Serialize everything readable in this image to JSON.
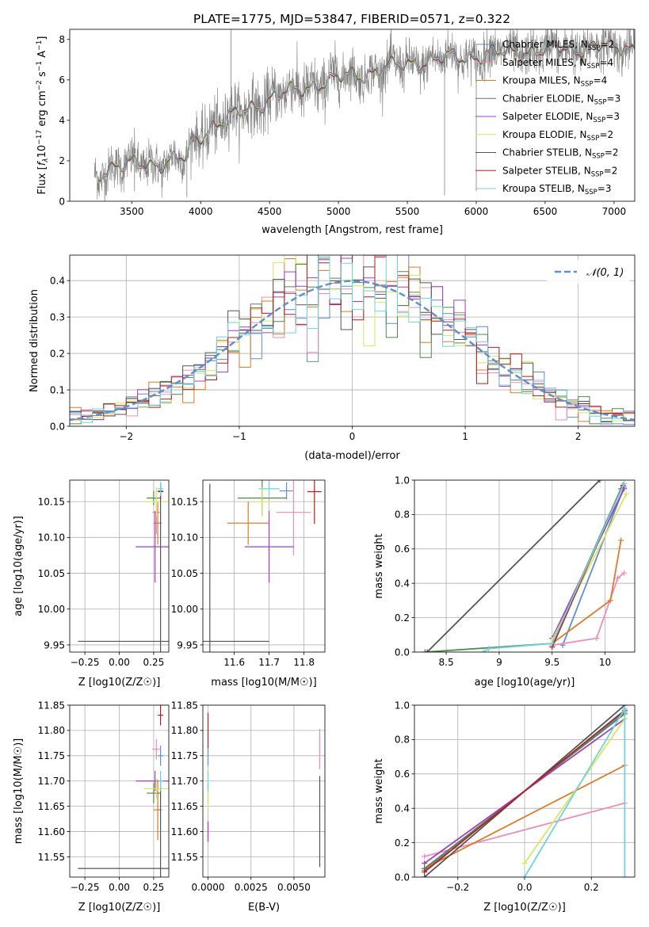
{
  "figure": {
    "title": "PLATE=1775, MJD=53847, FIBERID=0571, z=0.322"
  },
  "colors": {
    "chabrier_miles": "#5b8fd6",
    "salpeter_miles": "#f08db8",
    "kroupa_miles": "#e07b27",
    "chabrier_elodie": "#4c8a4c",
    "salpeter_elodie": "#a33fc4",
    "kroupa_elodie": "#d9e85a",
    "chabrier_stelib": "#555555",
    "salpeter_stelib": "#b51f1f",
    "kroupa_stelib": "#6fd3df",
    "observed": "#808080",
    "normal": "#5b8fd6"
  },
  "chart_data": [
    {
      "id": "spectrum",
      "type": "line",
      "xlabel": "wavelength [Angstrom, rest frame]",
      "ylabel": "Flux [f_λ 10^-17 erg cm^-2 s^-1 A^-1]",
      "xlim": [
        3050,
        7150
      ],
      "ylim": [
        0,
        8.5
      ],
      "xticks": [
        3500,
        4000,
        4500,
        5000,
        5500,
        6000,
        6500,
        7000
      ],
      "yticks": [
        0,
        2,
        4,
        6,
        8
      ],
      "grid": false,
      "legend_position": "top-right",
      "continuum_points": [
        [
          3230,
          1.2
        ],
        [
          3300,
          1.6
        ],
        [
          3500,
          1.8
        ],
        [
          3700,
          1.9
        ],
        [
          3900,
          2.1
        ],
        [
          3950,
          3.0
        ],
        [
          4100,
          3.8
        ],
        [
          4300,
          4.4
        ],
        [
          4500,
          5.1
        ],
        [
          4700,
          5.5
        ],
        [
          4900,
          5.9
        ],
        [
          5100,
          6.2
        ],
        [
          5300,
          6.5
        ],
        [
          5500,
          6.8
        ],
        [
          5700,
          7.0
        ],
        [
          6000,
          7.2
        ],
        [
          6300,
          7.4
        ],
        [
          6600,
          7.5
        ],
        [
          6800,
          7.6
        ],
        [
          7000,
          7.6
        ],
        [
          7150,
          7.6
        ]
      ],
      "legend": [
        {
          "name": "Chabrier MILES, N_SSP=2",
          "label": "Chabrier MILES, N",
          "sub": "SSP",
          "suffix": "=2",
          "color_key": "chabrier_miles"
        },
        {
          "name": "Salpeter MILES, N_SSP=4",
          "label": "Salpeter MILES, N",
          "sub": "SSP",
          "suffix": "=4",
          "color_key": "salpeter_miles"
        },
        {
          "name": "Kroupa MILES, N_SSP=4",
          "label": "Kroupa MILES, N",
          "sub": "SSP",
          "suffix": "=4",
          "color_key": "kroupa_miles"
        },
        {
          "name": "Chabrier ELODIE, N_SSP=3",
          "label": "Chabrier ELODIE, N",
          "sub": "SSP",
          "suffix": "=3",
          "color_key": "chabrier_elodie"
        },
        {
          "name": "Salpeter ELODIE, N_SSP=3",
          "label": "Salpeter ELODIE, N",
          "sub": "SSP",
          "suffix": "=3",
          "color_key": "salpeter_elodie"
        },
        {
          "name": "Kroupa ELODIE, N_SSP=2",
          "label": "Kroupa ELODIE, N",
          "sub": "SSP",
          "suffix": "=2",
          "color_key": "kroupa_elodie"
        },
        {
          "name": "Chabrier STELIB, N_SSP=2",
          "label": "Chabrier STELIB, N",
          "sub": "SSP",
          "suffix": "=2",
          "color_key": "chabrier_stelib"
        },
        {
          "name": "Salpeter STELIB, N_SSP=2",
          "label": "Salpeter STELIB, N",
          "sub": "SSP",
          "suffix": "=2",
          "color_key": "salpeter_stelib"
        },
        {
          "name": "Kroupa STELIB, N_SSP=3",
          "label": "Kroupa STELIB, N",
          "sub": "SSP",
          "suffix": "=3",
          "color_key": "kroupa_stelib"
        }
      ]
    },
    {
      "id": "residuals",
      "type": "line",
      "xlabel": "(data-model)/error",
      "ylabel": "Normed distribution",
      "xlim": [
        -2.5,
        2.5
      ],
      "ylim": [
        0,
        0.47
      ],
      "xticks": [
        -2,
        -1,
        0,
        1,
        2
      ],
      "yticks": [
        0.0,
        0.1,
        0.2,
        0.3,
        0.4
      ],
      "grid": true,
      "legend_position": "top-right",
      "legend": [
        {
          "name": "N(0,1)",
          "label": "𝒩(0, 1)",
          "color_key": "normal",
          "style": "dashed"
        }
      ],
      "bin_width": 0.1
    },
    {
      "id": "age_vs_Z",
      "type": "scatter",
      "xlabel": "Z [log10(Z/Z☉)]",
      "ylabel": "age [log10(age/yr)]",
      "xlim": [
        -0.36,
        0.36
      ],
      "ylim": [
        9.94,
        10.18
      ],
      "xticks": [
        -0.25,
        0.0,
        0.25
      ],
      "xtick_labels": [
        "−0.25",
        "0.00",
        "0.25"
      ],
      "yticks": [
        9.95,
        10.0,
        10.05,
        10.1,
        10.15
      ],
      "grid": true,
      "points": [
        {
          "color_key": "chabrier_miles",
          "x": 0.3,
          "y": 10.165,
          "xerr": 0.02,
          "yerr": 0.012
        },
        {
          "color_key": "salpeter_miles",
          "x": 0.27,
          "y": 10.135,
          "xerr": 0.03,
          "yerr": 0.03
        },
        {
          "color_key": "kroupa_miles",
          "x": 0.28,
          "y": 10.12,
          "xerr": 0.03,
          "yerr": 0.03
        },
        {
          "color_key": "chabrier_elodie",
          "x": 0.25,
          "y": 10.155,
          "xerr": 0.05,
          "yerr": 0.01
        },
        {
          "color_key": "salpeter_elodie",
          "x": 0.26,
          "y": 10.087,
          "xerr": 0.14,
          "yerr": 0.05
        },
        {
          "color_key": "kroupa_elodie",
          "x": 0.27,
          "y": 10.15,
          "xerr": 0.09,
          "yerr": 0.02
        },
        {
          "color_key": "chabrier_stelib",
          "x": 0.3,
          "y": 9.955,
          "xerr": 0.6,
          "yerr": 0.22
        },
        {
          "color_key": "salpeter_stelib",
          "x": 0.3,
          "y": 10.164,
          "xerr": 0.02,
          "yerr": 0.01
        },
        {
          "color_key": "kroupa_stelib",
          "x": 0.3,
          "y": 10.168,
          "xerr": 0.02,
          "yerr": 0.01
        }
      ]
    },
    {
      "id": "age_vs_mass",
      "type": "scatter",
      "xlabel": "mass [log10(M/M☉)]",
      "ylabel": "",
      "xlim": [
        11.51,
        11.86
      ],
      "ylim": [
        9.94,
        10.18
      ],
      "xticks": [
        11.6,
        11.7,
        11.8
      ],
      "yticks": [
        9.95,
        10.0,
        10.05,
        10.1,
        10.15
      ],
      "grid": true,
      "points": [
        {
          "color_key": "chabrier_miles",
          "x": 11.75,
          "y": 10.165,
          "xerr": 0.02,
          "yerr": 0.012
        },
        {
          "color_key": "salpeter_miles",
          "x": 11.77,
          "y": 10.135,
          "xerr": 0.05,
          "yerr": 0.06
        },
        {
          "color_key": "kroupa_miles",
          "x": 11.64,
          "y": 10.12,
          "xerr": 0.06,
          "yerr": 0.03
        },
        {
          "color_key": "chabrier_elodie",
          "x": 11.68,
          "y": 10.155,
          "xerr": 0.07,
          "yerr": 0.025
        },
        {
          "color_key": "salpeter_elodie",
          "x": 11.7,
          "y": 10.087,
          "xerr": 0.07,
          "yerr": 0.05
        },
        {
          "color_key": "kroupa_elodie",
          "x": 11.68,
          "y": 10.15,
          "xerr": 0.03,
          "yerr": 0.02
        },
        {
          "color_key": "chabrier_stelib",
          "x": 11.53,
          "y": 9.955,
          "xerr": 0.17,
          "yerr": 0.22
        },
        {
          "color_key": "salpeter_stelib",
          "x": 11.83,
          "y": 10.164,
          "xerr": 0.02,
          "yerr": 0.045
        },
        {
          "color_key": "kroupa_stelib",
          "x": 11.7,
          "y": 10.168,
          "xerr": 0.03,
          "yerr": 0.01
        }
      ]
    },
    {
      "id": "mass_weight_vs_age",
      "type": "line",
      "xlabel": "age [log10(age/yr)]",
      "ylabel": "mass weight",
      "xlim": [
        8.2,
        10.28
      ],
      "ylim": [
        0,
        1.0
      ],
      "xticks": [
        8.5,
        9.0,
        9.5,
        10.0
      ],
      "yticks": [
        0.0,
        0.2,
        0.4,
        0.6,
        0.8,
        1.0
      ],
      "grid": true,
      "series": [
        {
          "color_key": "chabrier_miles",
          "points": [
            [
              9.6,
              0.04
            ],
            [
              10.18,
              0.96
            ]
          ]
        },
        {
          "color_key": "salpeter_miles",
          "points": [
            [
              9.5,
              0.04
            ],
            [
              9.92,
              0.08
            ],
            [
              10.12,
              0.43
            ],
            [
              10.18,
              0.46
            ]
          ]
        },
        {
          "color_key": "kroupa_miles",
          "points": [
            [
              9.5,
              0.05
            ],
            [
              10.05,
              0.3
            ],
            [
              10.15,
              0.65
            ]
          ]
        },
        {
          "color_key": "chabrier_elodie",
          "points": [
            [
              8.3,
              0.0
            ],
            [
              9.5,
              0.05
            ],
            [
              10.15,
              0.95
            ]
          ]
        },
        {
          "color_key": "salpeter_elodie",
          "points": [
            [
              9.5,
              0.08
            ],
            [
              10.18,
              0.95
            ]
          ]
        },
        {
          "color_key": "kroupa_elodie",
          "points": [
            [
              9.5,
              0.07
            ],
            [
              10.2,
              0.92
            ]
          ]
        },
        {
          "color_key": "chabrier_stelib",
          "points": [
            [
              8.32,
              0.0
            ],
            [
              9.95,
              1.0
            ]
          ]
        },
        {
          "color_key": "salpeter_stelib",
          "points": [
            [
              9.5,
              0.03
            ],
            [
              10.17,
              0.97
            ]
          ]
        },
        {
          "color_key": "kroupa_stelib",
          "points": [
            [
              8.85,
              0.0
            ],
            [
              8.9,
              0.02
            ],
            [
              9.5,
              0.05
            ],
            [
              10.18,
              0.98
            ]
          ]
        }
      ]
    },
    {
      "id": "mass_vs_Z",
      "type": "scatter",
      "xlabel": "Z [log10(Z/Z☉)]",
      "ylabel": "mass [log10(M/M☉)]",
      "xlim": [
        -0.36,
        0.36
      ],
      "ylim": [
        11.51,
        11.85
      ],
      "xticks": [
        -0.25,
        0.0,
        0.25
      ],
      "xtick_labels": [
        "−0.25",
        "0.00",
        "0.25"
      ],
      "yticks": [
        11.55,
        11.6,
        11.65,
        11.7,
        11.75,
        11.8,
        11.85
      ],
      "grid": true,
      "points": [
        {
          "color_key": "chabrier_miles",
          "x": 0.3,
          "y": 11.75,
          "xerr": 0.02,
          "yerr": 0.02
        },
        {
          "color_key": "salpeter_miles",
          "x": 0.27,
          "y": 11.763,
          "xerr": 0.03,
          "yerr": 0.02
        },
        {
          "color_key": "kroupa_miles",
          "x": 0.28,
          "y": 11.643,
          "xerr": 0.03,
          "yerr": 0.06
        },
        {
          "color_key": "chabrier_elodie",
          "x": 0.25,
          "y": 11.676,
          "xerr": 0.05,
          "yerr": 0.02
        },
        {
          "color_key": "salpeter_elodie",
          "x": 0.26,
          "y": 11.7,
          "xerr": 0.14,
          "yerr": 0.02
        },
        {
          "color_key": "kroupa_elodie",
          "x": 0.27,
          "y": 11.685,
          "xerr": 0.09,
          "yerr": 0.02
        },
        {
          "color_key": "chabrier_stelib",
          "x": 0.3,
          "y": 11.527,
          "xerr": 0.6,
          "yerr": 0.18
        },
        {
          "color_key": "salpeter_stelib",
          "x": 0.3,
          "y": 11.83,
          "xerr": 0.02,
          "yerr": 0.02
        },
        {
          "color_key": "kroupa_stelib",
          "x": 0.3,
          "y": 11.7,
          "xerr": 0.02,
          "yerr": 0.02
        }
      ]
    },
    {
      "id": "mass_vs_ebv",
      "type": "scatter",
      "xlabel": "E(B-V)",
      "ylabel": "",
      "xlim": [
        -0.0003,
        0.0068
      ],
      "ylim": [
        11.51,
        11.85
      ],
      "xticks": [
        0.0,
        0.0025,
        0.005
      ],
      "xtick_labels": [
        "0.0000",
        "0.0025",
        "0.0050"
      ],
      "yticks": [
        11.55,
        11.6,
        11.65,
        11.7,
        11.75,
        11.8,
        11.85
      ],
      "grid": true,
      "points": [
        {
          "color_key": "chabrier_miles",
          "x": 0.0,
          "y": 11.75,
          "xerr": 2e-05,
          "yerr": 0.02
        },
        {
          "color_key": "salpeter_miles",
          "x": 0.0065,
          "y": 11.763,
          "xerr": 2e-05,
          "yerr": 0.04
        },
        {
          "color_key": "kroupa_miles",
          "x": 0.0,
          "y": 11.6,
          "xerr": 2e-05,
          "yerr": 0.02
        },
        {
          "color_key": "chabrier_elodie",
          "x": 0.0,
          "y": 11.676,
          "xerr": 2e-05,
          "yerr": 0.02
        },
        {
          "color_key": "salpeter_elodie",
          "x": 0.0,
          "y": 11.6,
          "xerr": 2e-05,
          "yerr": 0.02
        },
        {
          "color_key": "kroupa_elodie",
          "x": 0.0,
          "y": 11.685,
          "xerr": 2e-05,
          "yerr": 0.04
        },
        {
          "color_key": "chabrier_stelib",
          "x": 0.0065,
          "y": 11.62,
          "xerr": 2e-05,
          "yerr": 0.09
        },
        {
          "color_key": "salpeter_stelib",
          "x": 0.0,
          "y": 11.8,
          "xerr": 2e-05,
          "yerr": 0.035
        },
        {
          "color_key": "kroupa_stelib",
          "x": 0.0,
          "y": 11.7,
          "xerr": 2e-05,
          "yerr": 0.02
        }
      ]
    },
    {
      "id": "mass_weight_vs_Z",
      "type": "line",
      "xlabel": "Z [log10(Z/Z☉)]",
      "ylabel": "mass weight",
      "xlim": [
        -0.33,
        0.33
      ],
      "ylim": [
        0,
        1.0
      ],
      "xticks": [
        -0.2,
        0.0,
        0.2
      ],
      "xtick_labels": [
        "−0.2",
        "0.0",
        "0.2"
      ],
      "yticks": [
        0.0,
        0.2,
        0.4,
        0.6,
        0.8,
        1.0
      ],
      "grid": true,
      "series": [
        {
          "color_key": "chabrier_miles",
          "points": [
            [
              -0.3,
              0.04
            ],
            [
              0.3,
              0.96
            ]
          ]
        },
        {
          "color_key": "salpeter_miles",
          "points": [
            [
              -0.3,
              0.12
            ],
            [
              0.3,
              0.43
            ]
          ]
        },
        {
          "color_key": "kroupa_miles",
          "points": [
            [
              -0.3,
              0.05
            ],
            [
              0.3,
              0.65
            ]
          ]
        },
        {
          "color_key": "chabrier_elodie",
          "points": [
            [
              -0.3,
              0.05
            ],
            [
              0.3,
              0.95
            ]
          ]
        },
        {
          "color_key": "salpeter_elodie",
          "points": [
            [
              -0.3,
              0.08
            ],
            [
              0.3,
              0.92
            ]
          ]
        },
        {
          "color_key": "kroupa_elodie",
          "points": [
            [
              0.0,
              0.08
            ],
            [
              0.3,
              0.92
            ]
          ]
        },
        {
          "color_key": "chabrier_stelib",
          "points": [
            [
              -0.3,
              0.0
            ],
            [
              0.3,
              1.0
            ]
          ]
        },
        {
          "color_key": "salpeter_stelib",
          "points": [
            [
              -0.3,
              0.03
            ],
            [
              0.3,
              0.97
            ]
          ]
        },
        {
          "color_key": "kroupa_stelib",
          "points": [
            [
              0.0,
              0.0
            ],
            [
              0.3,
              0.98
            ],
            [
              0.3,
              0.0
            ]
          ]
        }
      ]
    }
  ]
}
